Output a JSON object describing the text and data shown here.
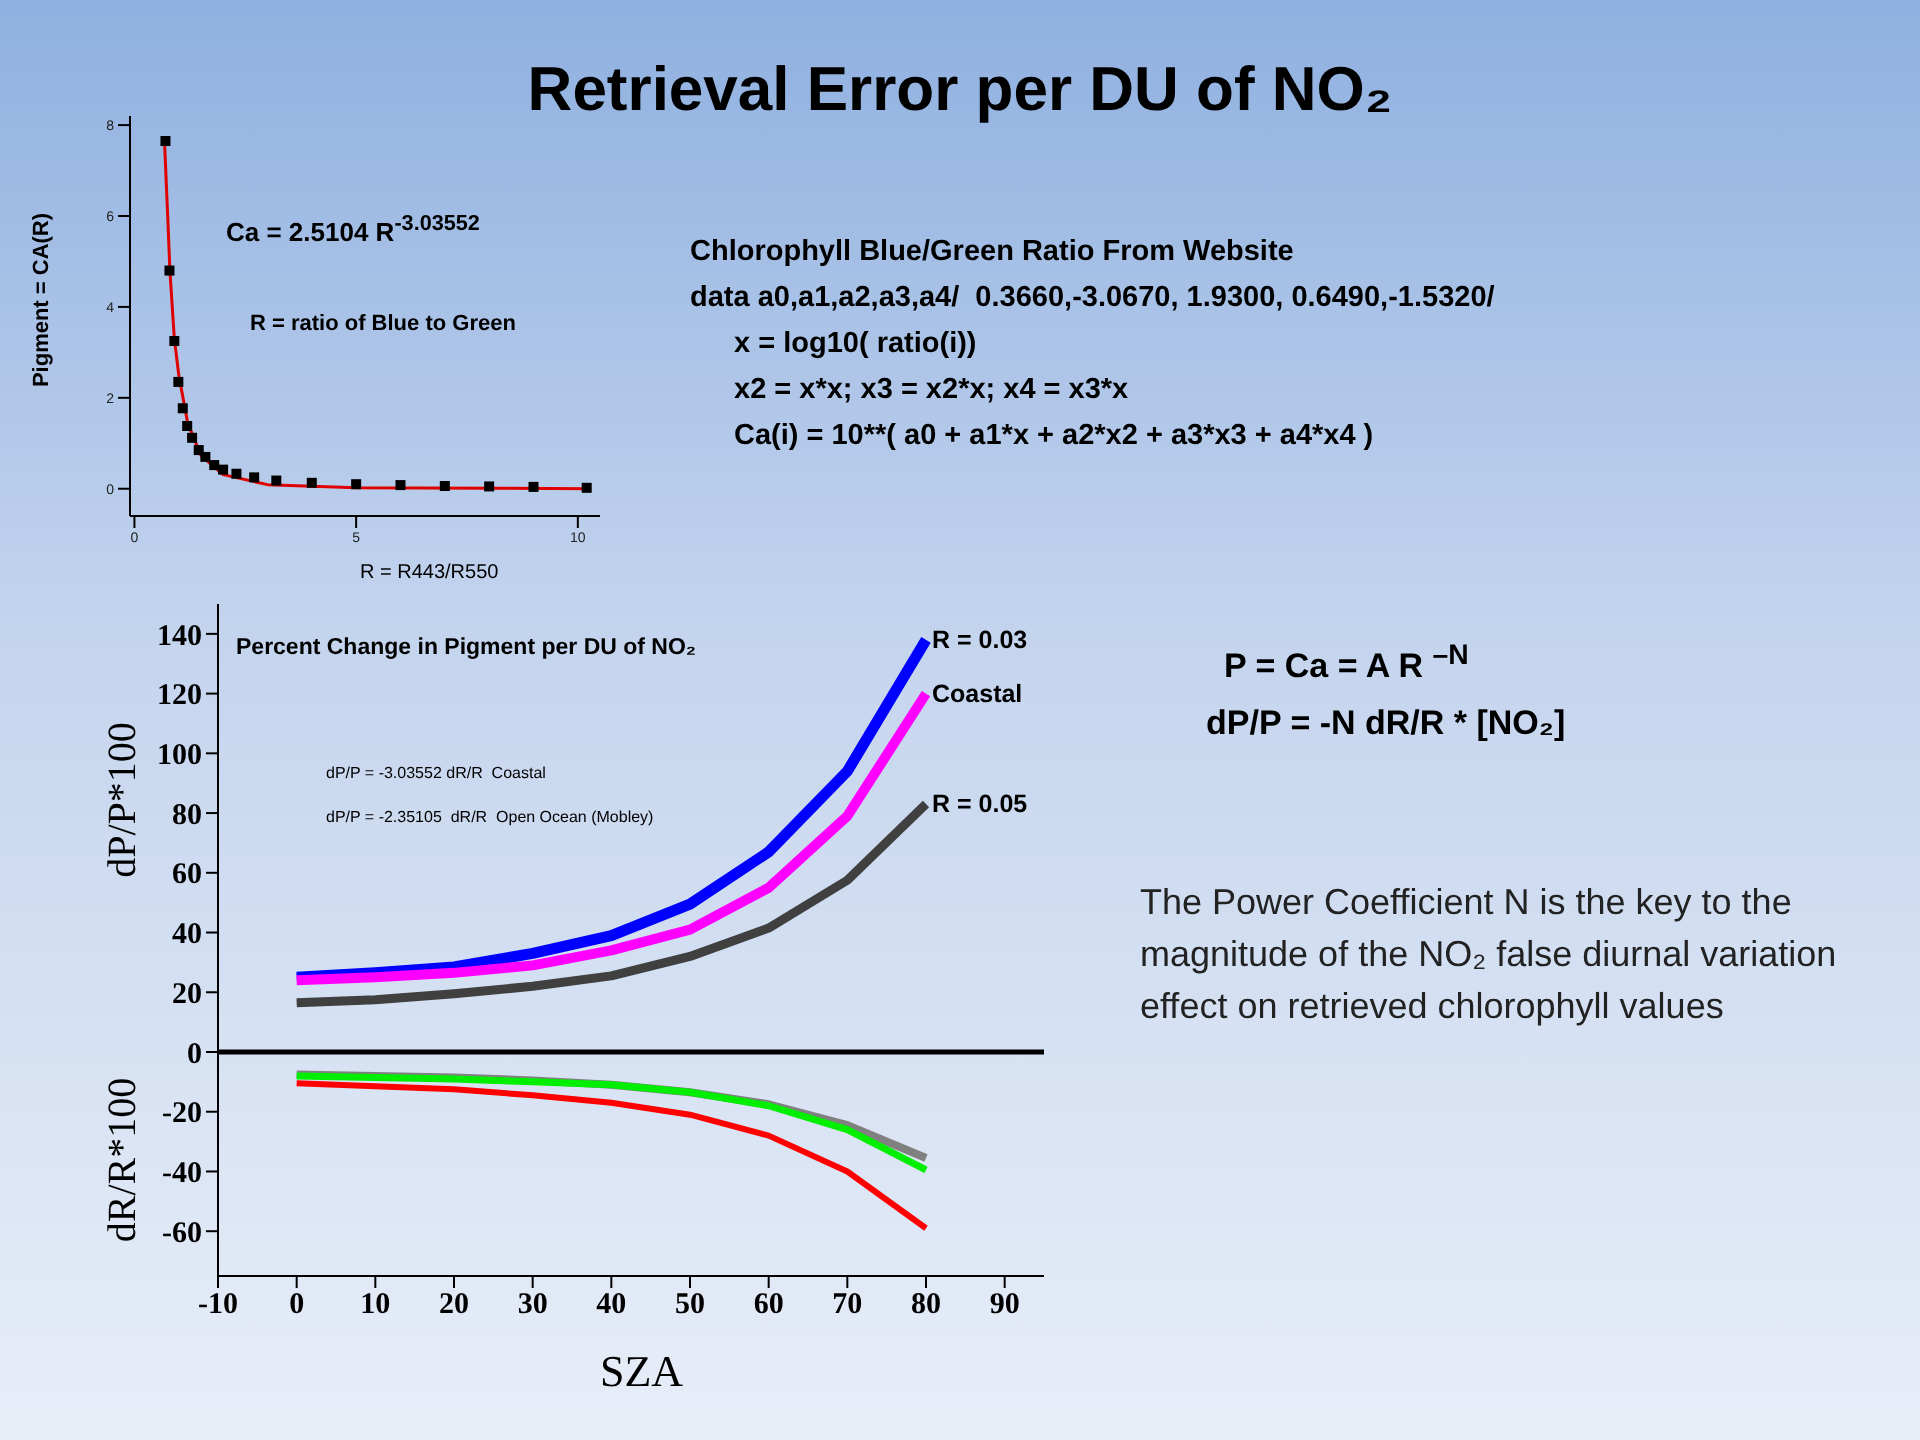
{
  "chart_data": [
    {
      "type": "scatter",
      "xlabel": "R = R443/R550",
      "ylabel": "Pigment = CA(R)",
      "xlim": [
        -0.1,
        10.5
      ],
      "xticks": [
        0,
        5,
        10
      ],
      "ylim": [
        -0.6,
        8.2
      ],
      "yticks": [
        0,
        2,
        4,
        6,
        8
      ],
      "annotations": [
        "Ca = 2.5104 R$^{-3.03552}$",
        "R = ratio of Blue to Green"
      ],
      "series": [
        {
          "type": "scatter",
          "marker": "square",
          "color": "#000000",
          "x": [
            0.7,
            0.79,
            0.9,
            0.99,
            1.09,
            1.19,
            1.3,
            1.45,
            1.6,
            1.8,
            2.0,
            2.3,
            2.7,
            3.2,
            4.0,
            5.0,
            6.0,
            7.0,
            8.0,
            9.0,
            10.2
          ],
          "values": [
            7.65,
            4.8,
            3.25,
            2.35,
            1.77,
            1.38,
            1.12,
            0.85,
            0.7,
            0.52,
            0.42,
            0.33,
            0.25,
            0.18,
            0.13,
            0.1,
            0.08,
            0.06,
            0.05,
            0.04,
            0.02
          ]
        },
        {
          "type": "line",
          "color": "#e00000",
          "x": [
            0.68,
            0.75,
            0.8,
            0.9,
            1.0,
            1.2,
            1.5,
            2.0,
            3.0,
            5.0,
            8.0,
            10.3
          ],
          "values": [
            7.6,
            6.0,
            4.8,
            3.3,
            2.5,
            1.45,
            0.73,
            0.31,
            0.09,
            0.02,
            0.01,
            0.0
          ]
        }
      ]
    },
    {
      "type": "line",
      "ylabel": "dP/P*100",
      "xlabel": "SZA",
      "x": [
        0,
        10,
        20,
        30,
        40,
        50,
        60,
        70,
        80
      ],
      "xlim": [
        -10,
        95
      ],
      "xticks": [
        -10,
        0,
        10,
        20,
        30,
        40,
        50,
        60,
        70,
        80,
        90
      ],
      "ylim": [
        -75,
        150
      ],
      "yticks": [
        -60,
        -40,
        -20,
        0,
        20,
        40,
        60,
        80,
        100,
        120,
        140
      ],
      "ref_lines": [
        {
          "axis": "y",
          "value": 0,
          "color": "#000000"
        }
      ],
      "annotations": [
        "Percent Change in Pigment per DU of NO₂",
        "dP/P = -3.03552 dR/R  Coastal",
        "dP/P = -2.35105  dR/R  Open Ocean (Mobley)",
        "dR/R*100"
      ],
      "series": [
        {
          "name": "R = 0.03",
          "color": "#0000ff",
          "values": [
            25,
            26.5,
            28.5,
            33,
            39,
            49.5,
            67,
            94,
            138
          ]
        },
        {
          "name": "Coastal",
          "color": "#ff00ff",
          "values": [
            24,
            25,
            26.5,
            29,
            34,
            41,
            55,
            79,
            120
          ]
        },
        {
          "name": "R = 0.05",
          "color": "#404040",
          "values": [
            16.5,
            17.5,
            19.5,
            22,
            25.5,
            32,
            41.5,
            57.5,
            83
          ]
        },
        {
          "color": "#808080",
          "values": [
            -7.5,
            -8,
            -8.5,
            -9.5,
            -11,
            -13.5,
            -17.5,
            -24.5,
            -35.5
          ]
        },
        {
          "color": "#00ee00",
          "values": [
            -8,
            -8.5,
            -9,
            -10,
            -11,
            -13.5,
            -18,
            -26,
            -39.5
          ]
        },
        {
          "color": "#ff0000",
          "values": [
            -10.5,
            -11.5,
            -12.5,
            -14.5,
            -17,
            -21,
            -28,
            -40,
            -59
          ]
        }
      ]
    },
    {
      "type": "other",
      "title": "Retrieval Error per DU of NO₂",
      "annotations": [
        "Chlorophyll Blue/Green Ratio From Website",
        "data a0,a1,a2,a3,a4/  0.3660,-3.0670, 1.9300, 0.6490,-1.5320/",
        "x = log10( ratio(i))",
        "x2 = x*x; x3 = x2*x; x4 = x3*x",
        "Ca(i) = 10**( a0 + a1*x + a2*x2 + a3*x3 + a4*x4 )",
        "P = Ca = A R $^{–N}$",
        "dP/P = -N dR/R * [NO₂]",
        "The Power Coefficient N is the key to the magnitude of the NO₂ false diurnal variation effect on retrieved chlorophyll values"
      ]
    }
  ]
}
